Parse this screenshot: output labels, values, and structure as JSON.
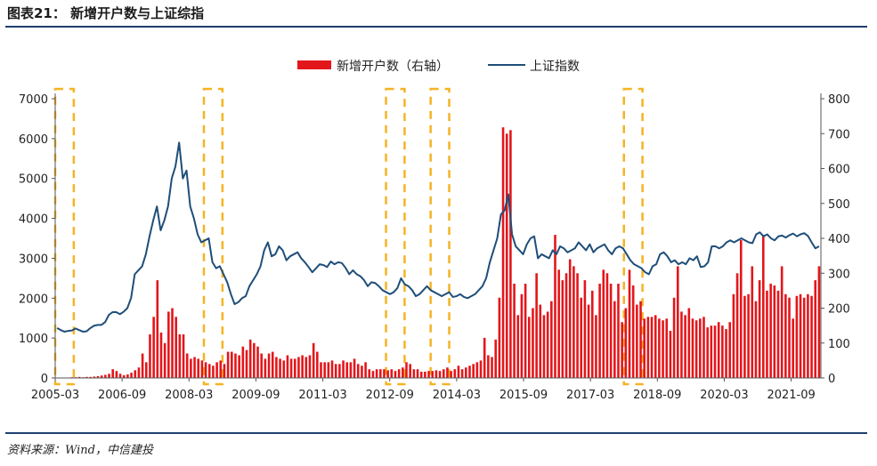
{
  "header": {
    "title": "图表21： 新增开户数与上证综指"
  },
  "footer": {
    "source": "资料来源：Wind，中信建投"
  },
  "colors": {
    "bar": "#e3161b",
    "line": "#1f4e79",
    "highlight": "#f5b323",
    "rule": "#1f3f6e"
  },
  "chart_data": {
    "type": "bar+line",
    "legend_placement": "top-center",
    "x_tick_labels": [
      "2005-03",
      "2006-09",
      "2008-03",
      "2009-09",
      "2011-03",
      "2012-09",
      "2014-03",
      "2015-09",
      "2017-03",
      "2018-09",
      "2020-03",
      "2021-09"
    ],
    "y_left": {
      "ticks": [
        0,
        1000,
        2000,
        3000,
        4000,
        5000,
        6000,
        7000
      ],
      "ylim": [
        0,
        7000
      ]
    },
    "y_right": {
      "ticks": [
        0,
        100,
        200,
        300,
        400,
        500,
        600,
        700,
        800
      ],
      "ylim": [
        0,
        800
      ]
    },
    "highlight_periods": [
      {
        "start_index": 0,
        "end_index": 4
      },
      {
        "start_index": 40,
        "end_index": 44
      },
      {
        "start_index": 89,
        "end_index": 93
      },
      {
        "start_index": 101,
        "end_index": 105
      },
      {
        "start_index": 153,
        "end_index": 157
      }
    ],
    "series": [
      {
        "name": "新增开户数（右轴）",
        "type": "bar",
        "axis": "right",
        "values": [
          1,
          1,
          1,
          1,
          2,
          2,
          3,
          2,
          3,
          3,
          4,
          5,
          7,
          9,
          12,
          25,
          20,
          12,
          8,
          10,
          15,
          22,
          30,
          70,
          45,
          125,
          175,
          280,
          130,
          100,
          190,
          200,
          175,
          125,
          125,
          70,
          55,
          60,
          55,
          50,
          45,
          40,
          35,
          45,
          50,
          40,
          75,
          75,
          70,
          65,
          90,
          80,
          110,
          100,
          90,
          70,
          55,
          70,
          75,
          60,
          55,
          50,
          65,
          55,
          55,
          60,
          65,
          60,
          65,
          100,
          75,
          45,
          45,
          45,
          50,
          40,
          40,
          50,
          45,
          45,
          55,
          40,
          35,
          45,
          25,
          20,
          25,
          25,
          25,
          22,
          25,
          20,
          25,
          30,
          45,
          40,
          25,
          25,
          18,
          18,
          20,
          20,
          22,
          20,
          25,
          30,
          20,
          25,
          35,
          25,
          30,
          35,
          40,
          45,
          50,
          115,
          65,
          60,
          110,
          230,
          718,
          700,
          710,
          270,
          180,
          240,
          270,
          175,
          200,
          300,
          210,
          180,
          190,
          220,
          410,
          310,
          280,
          300,
          340,
          320,
          300,
          230,
          280,
          210,
          250,
          180,
          270,
          310,
          300,
          270,
          220,
          270,
          160,
          200,
          310,
          265,
          210,
          220,
          170,
          175,
          175,
          180,
          170,
          165,
          170,
          135,
          230,
          320,
          190,
          180,
          200,
          170,
          165,
          170,
          175,
          145,
          150,
          150,
          160,
          150,
          140,
          160,
          240,
          300,
          395,
          235,
          240,
          320,
          220,
          280,
          410,
          250,
          270,
          265,
          250,
          320,
          240,
          230,
          170,
          235,
          240,
          230,
          240,
          235,
          280,
          320
        ],
        "_note_values_unit": "10k accounts (right axis)"
      },
      {
        "name": "上证指数",
        "type": "line",
        "axis": "left",
        "values": [
          1250,
          1200,
          1160,
          1180,
          1190,
          1240,
          1200,
          1160,
          1170,
          1250,
          1310,
          1330,
          1330,
          1400,
          1580,
          1650,
          1650,
          1600,
          1660,
          1750,
          2000,
          2600,
          2700,
          2800,
          3100,
          3550,
          3950,
          4300,
          3700,
          3950,
          4300,
          5000,
          5300,
          5900,
          5000,
          5200,
          4300,
          4000,
          3600,
          3400,
          3450,
          3500,
          2900,
          2750,
          2800,
          2600,
          2400,
          2100,
          1850,
          1900,
          2000,
          2050,
          2300,
          2450,
          2600,
          2800,
          3200,
          3400,
          3050,
          3100,
          3300,
          3200,
          2950,
          3050,
          3100,
          3150,
          3000,
          2900,
          2780,
          2650,
          2750,
          2850,
          2830,
          2780,
          2920,
          2850,
          2900,
          2880,
          2760,
          2600,
          2700,
          2600,
          2550,
          2450,
          2300,
          2400,
          2380,
          2300,
          2200,
          2150,
          2100,
          2150,
          2250,
          2500,
          2350,
          2300,
          2200,
          2050,
          2100,
          2200,
          2300,
          2200,
          2150,
          2100,
          2050,
          2100,
          2150,
          2030,
          2050,
          2100,
          2030,
          2000,
          2050,
          2100,
          2200,
          2300,
          2500,
          2900,
          3200,
          3500,
          4100,
          4200,
          4600,
          3600,
          3300,
          3200,
          3100,
          3350,
          3500,
          3550,
          3000,
          3100,
          3050,
          3000,
          3200,
          3100,
          3300,
          3250,
          3150,
          3200,
          3250,
          3400,
          3300,
          3200,
          3350,
          3150,
          3250,
          3300,
          3350,
          3200,
          3100,
          3250,
          3300,
          3250,
          3100,
          2950,
          2850,
          2800,
          2750,
          2650,
          2600,
          2800,
          2850,
          3100,
          3150,
          3050,
          2900,
          2950,
          2850,
          2900,
          2850,
          3000,
          2950,
          3050,
          2780,
          2800,
          2900,
          3300,
          3300,
          3250,
          3300,
          3400,
          3450,
          3400,
          3450,
          3500,
          3450,
          3400,
          3380,
          3600,
          3650,
          3550,
          3600,
          3500,
          3450,
          3550,
          3570,
          3520,
          3580,
          3620,
          3550,
          3600,
          3630,
          3560,
          3400,
          3250,
          3300
        ]
      }
    ]
  }
}
